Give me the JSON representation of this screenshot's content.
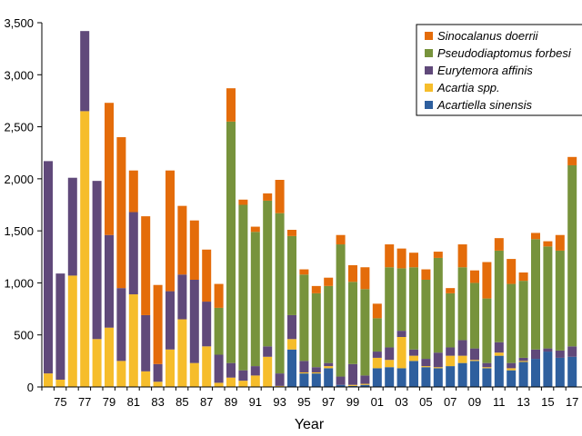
{
  "chart_data": {
    "type": "bar",
    "stacked": true,
    "xlabel": "Year",
    "ylabel": "",
    "ylim": [
      0,
      3500
    ],
    "yticks": [
      0,
      500,
      1000,
      1500,
      2000,
      2500,
      3000,
      3500
    ],
    "ytick_labels": [
      "0",
      "500",
      "1,000",
      "1,500",
      "2,000",
      "2,500",
      "3,000",
      "3,500"
    ],
    "categories": [
      "74",
      "75",
      "76",
      "77",
      "78",
      "79",
      "80",
      "81",
      "82",
      "83",
      "84",
      "85",
      "86",
      "87",
      "88",
      "89",
      "90",
      "91",
      "92",
      "93",
      "94",
      "95",
      "96",
      "97",
      "98",
      "99",
      "00",
      "01",
      "02",
      "03",
      "04",
      "05",
      "06",
      "07",
      "08",
      "09",
      "10",
      "11",
      "12",
      "13",
      "14",
      "15",
      "16",
      "17"
    ],
    "x_tick_labels": [
      "",
      "75",
      "",
      "77",
      "",
      "79",
      "",
      "81",
      "",
      "83",
      "",
      "85",
      "",
      "87",
      "",
      "89",
      "",
      "91",
      "",
      "93",
      "",
      "95",
      "",
      "97",
      "",
      "99",
      "",
      "01",
      "",
      "03",
      "",
      "05",
      "",
      "07",
      "",
      "09",
      "",
      "11",
      "",
      "13",
      "",
      "15",
      "",
      "17"
    ],
    "grid": false,
    "legend_position": "top-right",
    "legend_order": [
      "Sinocalanus doerrii",
      "Pseudodiaptomus forbesi",
      "Eurytemora affinis",
      "Acartia spp.",
      "Acartiella sinensis"
    ],
    "series": [
      {
        "name": "Acartiella sinensis",
        "color": "#2e5f9e",
        "values": [
          0,
          0,
          0,
          0,
          0,
          0,
          0,
          0,
          0,
          0,
          0,
          0,
          0,
          0,
          0,
          0,
          0,
          0,
          0,
          0,
          360,
          130,
          130,
          180,
          20,
          10,
          20,
          180,
          190,
          180,
          250,
          190,
          180,
          200,
          230,
          250,
          180,
          300,
          160,
          240,
          270,
          340,
          280,
          290
        ]
      },
      {
        "name": "Acartia spp.",
        "color": "#f6bd2b",
        "values": [
          130,
          70,
          1070,
          2650,
          460,
          570,
          250,
          890,
          150,
          50,
          360,
          650,
          230,
          390,
          40,
          90,
          60,
          110,
          290,
          10,
          100,
          10,
          10,
          20,
          0,
          10,
          10,
          100,
          70,
          300,
          50,
          10,
          10,
          100,
          70,
          10,
          10,
          30,
          20,
          10,
          0,
          0,
          0,
          0
        ]
      },
      {
        "name": "Eurytemora affinis",
        "color": "#60497a",
        "values": [
          2040,
          1020,
          940,
          770,
          1520,
          890,
          700,
          790,
          540,
          170,
          560,
          430,
          800,
          430,
          270,
          140,
          100,
          90,
          100,
          120,
          230,
          110,
          50,
          30,
          80,
          200,
          80,
          60,
          120,
          60,
          60,
          70,
          140,
          80,
          150,
          110,
          40,
          100,
          50,
          30,
          90,
          30,
          70,
          100
        ]
      },
      {
        "name": "Pseudodiaptomus forbesi",
        "color": "#77933c",
        "values": [
          0,
          0,
          0,
          0,
          0,
          0,
          0,
          0,
          0,
          0,
          0,
          0,
          0,
          0,
          450,
          2320,
          1590,
          1290,
          1400,
          1540,
          760,
          830,
          710,
          740,
          1270,
          790,
          830,
          320,
          770,
          600,
          790,
          760,
          910,
          520,
          700,
          630,
          620,
          880,
          760,
          740,
          1060,
          980,
          960,
          1740
        ]
      },
      {
        "name": "Sinocalanus doerrii",
        "color": "#e46c0a",
        "values": [
          0,
          0,
          0,
          0,
          0,
          1270,
          1450,
          400,
          950,
          760,
          1160,
          660,
          570,
          500,
          230,
          320,
          50,
          50,
          70,
          320,
          60,
          50,
          70,
          80,
          90,
          160,
          210,
          140,
          220,
          190,
          140,
          100,
          60,
          50,
          220,
          120,
          350,
          120,
          240,
          80,
          60,
          50,
          150,
          80
        ]
      }
    ]
  }
}
